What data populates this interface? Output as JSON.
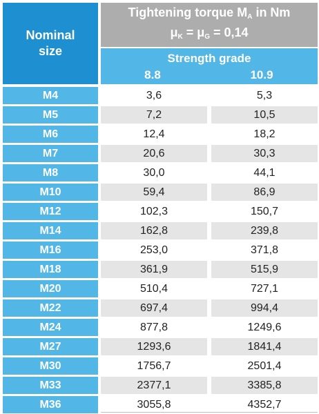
{
  "header": {
    "nominal_line1": "Nominal",
    "nominal_line2": "size",
    "torque_title": "Tightening torque M",
    "torque_title_sub": "A",
    "torque_title_suffix": " in Nm",
    "mu_k": "μ",
    "mu_k_sub": "K",
    "mu_mid": " = μ",
    "mu_g_sub": "G",
    "mu_value": " = 0,14",
    "strength_grade": "Strength grade",
    "grade_1": "8.8",
    "grade_2": "10.9"
  },
  "rows": [
    {
      "size": "M4",
      "g88": "3,6",
      "g109": "5,3"
    },
    {
      "size": "M5",
      "g88": "7,2",
      "g109": "10,5"
    },
    {
      "size": "M6",
      "g88": "12,4",
      "g109": "18,2"
    },
    {
      "size": "M7",
      "g88": "20,6",
      "g109": "30,3"
    },
    {
      "size": "M8",
      "g88": "30,0",
      "g109": "44,1"
    },
    {
      "size": "M10",
      "g88": "59,4",
      "g109": "86,9"
    },
    {
      "size": "M12",
      "g88": "102,3",
      "g109": "150,7"
    },
    {
      "size": "M14",
      "g88": "162,8",
      "g109": "239,8"
    },
    {
      "size": "M16",
      "g88": "253,0",
      "g109": "371,8"
    },
    {
      "size": "M18",
      "g88": "361,9",
      "g109": "515,9"
    },
    {
      "size": "M20",
      "g88": "510,4",
      "g109": "727,1"
    },
    {
      "size": "M22",
      "g88": "697,4",
      "g109": "994,4"
    },
    {
      "size": "M24",
      "g88": "877,8",
      "g109": "1249,6"
    },
    {
      "size": "M27",
      "g88": "1293,6",
      "g109": "1841,4"
    },
    {
      "size": "M30",
      "g88": "1756,7",
      "g109": "2501,4"
    },
    {
      "size": "M33",
      "g88": "2377,1",
      "g109": "3385,8"
    },
    {
      "size": "M36",
      "g88": "3055,8",
      "g109": "4352,7"
    }
  ],
  "colors": {
    "dark_blue": "#1e8fd0",
    "light_blue": "#52b6e6",
    "gray_header": "#adadad",
    "row_shade": "#e5e5e5"
  }
}
